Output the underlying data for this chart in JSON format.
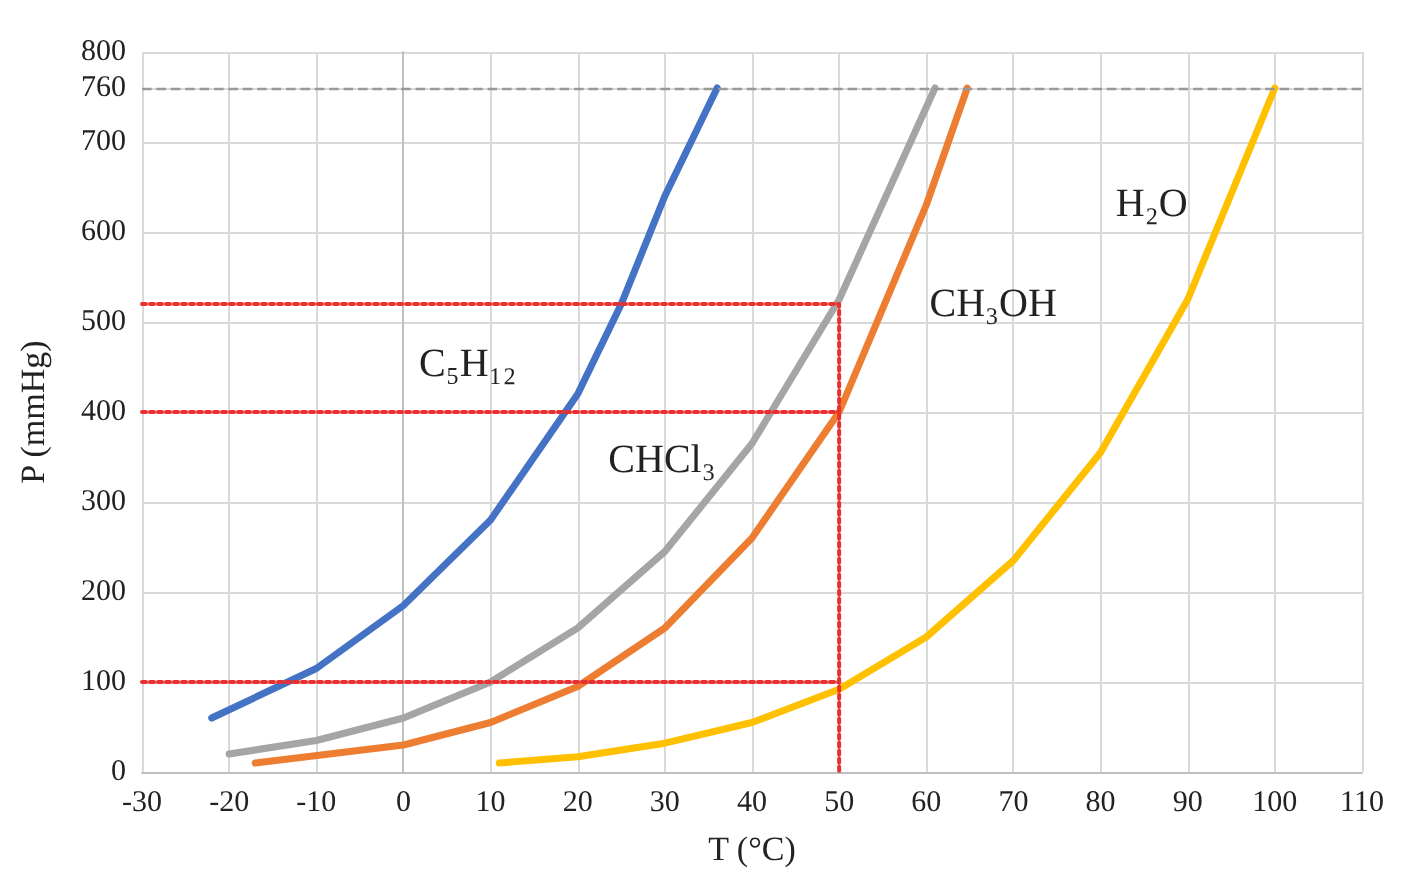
{
  "chart_data": {
    "type": "line",
    "xlabel": "T (°C)",
    "ylabel": "P (mmHg)",
    "xlim": [
      -30,
      110
    ],
    "xticks": [
      -30,
      -20,
      -10,
      0,
      10,
      20,
      30,
      40,
      50,
      60,
      70,
      80,
      90,
      100,
      110
    ],
    "ylim": [
      0,
      800
    ],
    "yticks": [
      0,
      100,
      200,
      300,
      400,
      500,
      600,
      700,
      760,
      800
    ],
    "grid": true,
    "marker": "none",
    "line_style": "solid",
    "series": [
      {
        "name": "C₅H₁₂",
        "color": "#4472c4",
        "x": [
          -22,
          -10,
          0,
          10,
          20,
          25,
          30,
          36
        ],
        "values": [
          60,
          115,
          185,
          280,
          420,
          520,
          640,
          760
        ]
      },
      {
        "name": "CHCl₃",
        "color": "#a5a5a5",
        "x": [
          -20,
          -10,
          0,
          10,
          20,
          30,
          40,
          50,
          61
        ],
        "values": [
          20,
          35,
          60,
          100,
          160,
          245,
          365,
          525,
          760
        ]
      },
      {
        "name": "CH₃OH",
        "color": "#ed7d31",
        "x": [
          -17,
          0,
          10,
          20,
          30,
          40,
          50,
          60,
          64.7
        ],
        "values": [
          10,
          30,
          55,
          95,
          160,
          260,
          400,
          630,
          760
        ]
      },
      {
        "name": "H₂O",
        "color": "#ffc000",
        "x": [
          11,
          20,
          30,
          40,
          50,
          60,
          70,
          80,
          90,
          100
        ],
        "values": [
          10,
          17,
          32,
          55,
          92,
          150,
          235,
          355,
          525,
          760
        ]
      },
      {
        "color": "#e8312f",
        "line_style": "dotted",
        "x": [
          -30,
          50,
          50
        ],
        "values": [
          520,
          520,
          0
        ]
      },
      {
        "color": "#e8312f",
        "line_style": "dotted",
        "x": [
          -30,
          50
        ],
        "values": [
          400,
          400
        ]
      },
      {
        "color": "#e8312f",
        "line_style": "dotted",
        "x": [
          -30,
          50
        ],
        "values": [
          100,
          100
        ]
      }
    ],
    "ref_lines": [
      {
        "axis": "y",
        "value": 760,
        "color": "#999999",
        "line_style": "dashed"
      }
    ]
  }
}
